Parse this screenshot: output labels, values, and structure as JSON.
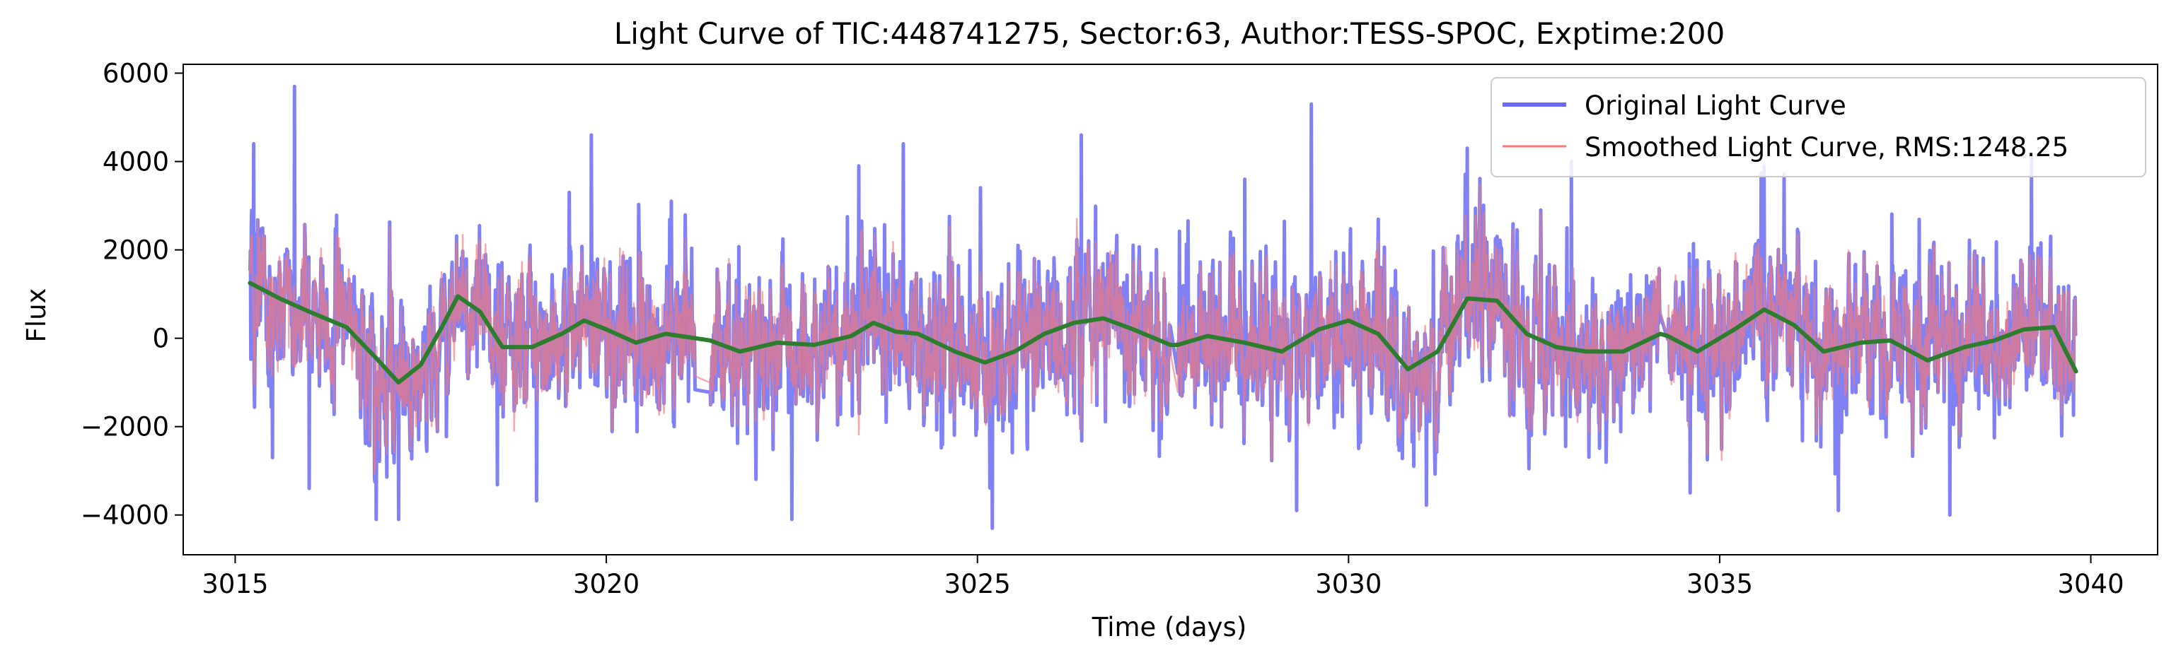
{
  "chart_data": {
    "type": "line",
    "title": "Light Curve of TIC:448741275, Sector:63, Author:TESS-SPOC, Exptime:200",
    "xlabel": "Time (days)",
    "ylabel": "Flux",
    "xlim": [
      3014.3,
      3040.9
    ],
    "ylim": [
      -4900,
      6200
    ],
    "xticks": [
      3015,
      3020,
      3025,
      3030,
      3035,
      3040
    ],
    "yticks": [
      -4000,
      -2000,
      0,
      2000,
      4000,
      6000
    ],
    "ytick_labels": [
      "−4000",
      "−2000",
      "0",
      "2000",
      "4000",
      "6000"
    ],
    "grid": false,
    "legend_position": "top-right",
    "observation_segments": [
      [
        3015.2,
        3021.2
      ],
      [
        3021.4,
        3027.6
      ],
      [
        3027.7,
        3034.2
      ],
      [
        3034.3,
        3039.8
      ]
    ],
    "series": [
      {
        "name": "Original Light Curve",
        "color": "#6b6bf5",
        "style": "thick-line-translucent",
        "amplitude_typical": 2200,
        "notable_points": [
          [
            3015.25,
            4400
          ],
          [
            3015.5,
            -2700
          ],
          [
            3015.8,
            5700
          ],
          [
            3016.0,
            -3400
          ],
          [
            3016.9,
            -4100
          ],
          [
            3017.2,
            -4100
          ],
          [
            3019.5,
            3300
          ],
          [
            3019.8,
            4600
          ],
          [
            3022.5,
            -4100
          ],
          [
            3023.4,
            3900
          ],
          [
            3024.0,
            4400
          ],
          [
            3025.2,
            -4300
          ],
          [
            3026.4,
            4600
          ],
          [
            3028.6,
            3600
          ],
          [
            3029.3,
            -3900
          ],
          [
            3029.5,
            5300
          ],
          [
            3031.6,
            4300
          ],
          [
            3033.0,
            4000
          ],
          [
            3034.6,
            -3500
          ],
          [
            3035.6,
            3900
          ],
          [
            3036.6,
            -3900
          ],
          [
            3038.1,
            -4000
          ],
          [
            3039.2,
            4100
          ]
        ]
      },
      {
        "name": "Smoothed Light Curve, RMS:1248.25",
        "color": "#f87878",
        "style": "thin-line-translucent",
        "rms": 1248.25
      },
      {
        "name": "",
        "color": "#2e7d2e",
        "style": "trend",
        "x": [
          3015.2,
          3015.6,
          3016.0,
          3016.5,
          3016.9,
          3017.2,
          3017.5,
          3017.8,
          3018.0,
          3018.3,
          3018.6,
          3019.0,
          3019.4,
          3019.7,
          3020.0,
          3020.4,
          3020.8,
          3021.2,
          3021.4,
          3021.8,
          3022.3,
          3022.8,
          3023.3,
          3023.6,
          3023.9,
          3024.2,
          3024.7,
          3025.1,
          3025.5,
          3025.9,
          3026.3,
          3026.7,
          3027.1,
          3027.6,
          3027.7,
          3028.1,
          3028.6,
          3029.1,
          3029.6,
          3030.0,
          3030.4,
          3030.8,
          3031.2,
          3031.6,
          3032.0,
          3032.4,
          3032.8,
          3033.2,
          3033.7,
          3034.2,
          3034.3,
          3034.7,
          3035.2,
          3035.6,
          3036.0,
          3036.4,
          3036.9,
          3037.3,
          3037.8,
          3038.3,
          3038.7,
          3039.1,
          3039.5,
          3039.8
        ],
        "y": [
          1250,
          900,
          600,
          250,
          -450,
          -1000,
          -600,
          300,
          950,
          600,
          -200,
          -200,
          100,
          400,
          200,
          -100,
          100,
          0,
          -50,
          -300,
          -100,
          -150,
          50,
          350,
          150,
          100,
          -300,
          -550,
          -300,
          100,
          350,
          450,
          200,
          -150,
          -150,
          50,
          -100,
          -300,
          200,
          400,
          100,
          -700,
          -300,
          900,
          850,
          100,
          -200,
          -300,
          -300,
          100,
          50,
          -300,
          200,
          650,
          300,
          -300,
          -100,
          -50,
          -500,
          -200,
          -50,
          200,
          250,
          -750
        ]
      }
    ]
  }
}
